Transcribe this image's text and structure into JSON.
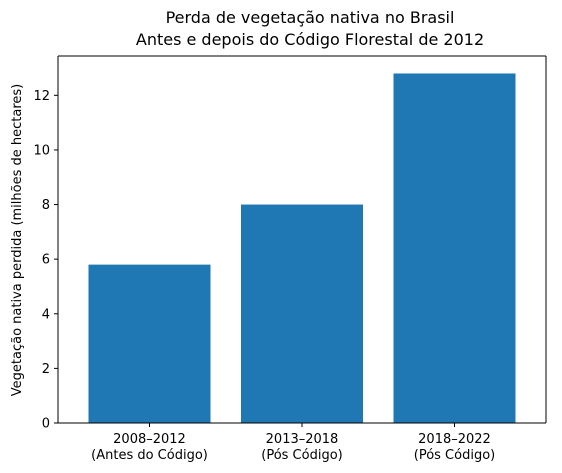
{
  "chart_data": {
    "type": "bar",
    "title_lines": [
      "Perda de vegetação nativa no Brasil",
      "Antes e depois do Código Florestal de 2012"
    ],
    "categories": [
      [
        "2008–2012",
        "(Antes do Código)"
      ],
      [
        "2013–2018",
        "(Pós Código)"
      ],
      [
        "2018–2022",
        "(Pós Código)"
      ]
    ],
    "values": [
      5.8,
      8.0,
      12.8
    ],
    "xlabel": "",
    "ylabel": "Vegetação nativa perdida (milhões de hectares)",
    "ylim": [
      0,
      13.44
    ],
    "yticks": [
      0,
      2,
      4,
      6,
      8,
      10,
      12
    ],
    "bar_color": "#1f77b4",
    "grid": false,
    "legend": "none"
  }
}
